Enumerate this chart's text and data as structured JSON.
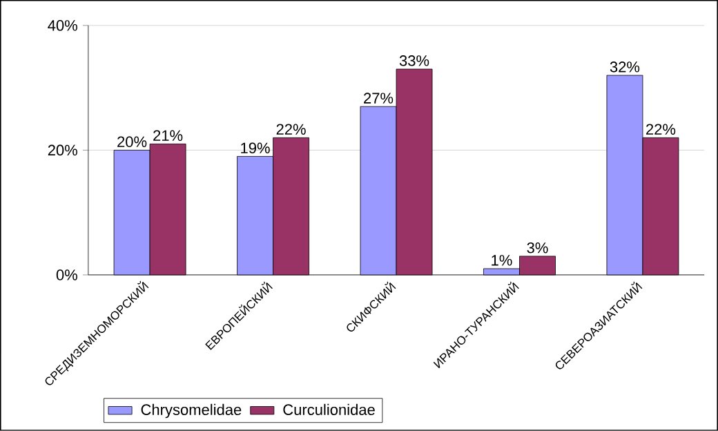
{
  "chart_data": {
    "type": "bar",
    "categories": [
      "СРЕДИЗЕМНОМОРСКИЙ",
      "ЕВРОПЕЙСКИЙ",
      "СКИФСКИЙ",
      "ИРАНО-ТУРАНСКИЙ",
      "СЕВЕРОАЗИАТСКИЙ"
    ],
    "series": [
      {
        "name": "Chrysomelidae",
        "color": "#9999ff",
        "values": [
          20,
          19,
          27,
          1,
          32
        ],
        "value_labels": [
          "20%",
          "19%",
          "27%",
          "1%",
          "32%"
        ]
      },
      {
        "name": "Curculionidae",
        "color": "#993366",
        "values": [
          21,
          22,
          33,
          3,
          22
        ],
        "value_labels": [
          "21%",
          "22%",
          "33%",
          "3%",
          "22%"
        ]
      }
    ],
    "ylim": [
      0,
      40
    ],
    "yticks": [
      {
        "value": 0,
        "label": "0%"
      },
      {
        "value": 20,
        "label": "20%"
      },
      {
        "value": 40,
        "label": "40%"
      }
    ],
    "grid": "y",
    "legend": "bottom left"
  }
}
